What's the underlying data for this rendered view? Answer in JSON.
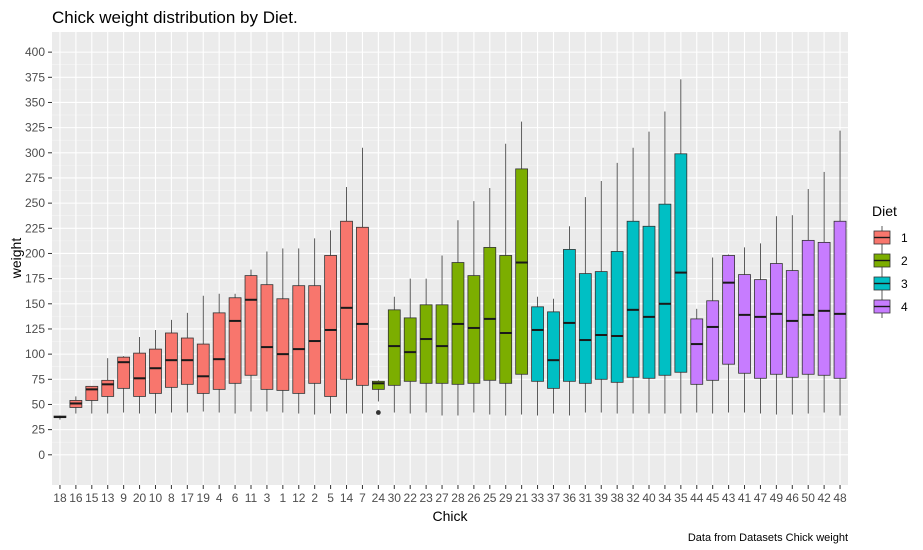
{
  "chart_data": {
    "type": "boxplot",
    "title": "Chick weight distribution by Diet.",
    "xlabel": "Chick",
    "ylabel": "weight",
    "caption": "Data from Datasets Chick weight",
    "ylim": [
      -30,
      420
    ],
    "yticks": [
      0,
      25,
      50,
      75,
      100,
      125,
      150,
      175,
      200,
      225,
      250,
      275,
      300,
      325,
      350,
      375,
      400
    ],
    "grid": true,
    "legend": {
      "title": "Diet",
      "position": "right"
    },
    "series": [
      {
        "name": "1",
        "color": "#F8766D"
      },
      {
        "name": "2",
        "color": "#7CAE00"
      },
      {
        "name": "3",
        "color": "#00BFC4"
      },
      {
        "name": "4",
        "color": "#C77CFF"
      }
    ],
    "boxes": [
      {
        "chick": "18",
        "diet": "1",
        "min": 35,
        "q1": 37,
        "median": 37.5,
        "q3": 38.5,
        "max": 39,
        "outliers": []
      },
      {
        "chick": "16",
        "diet": "1",
        "min": 41,
        "q1": 47,
        "median": 51,
        "q3": 54,
        "max": 58,
        "outliers": []
      },
      {
        "chick": "15",
        "diet": "1",
        "min": 41,
        "q1": 54,
        "median": 65,
        "q3": 68,
        "max": 68,
        "outliers": []
      },
      {
        "chick": "13",
        "diet": "1",
        "min": 41,
        "q1": 58,
        "median": 70,
        "q3": 74,
        "max": 96,
        "outliers": []
      },
      {
        "chick": "9",
        "diet": "1",
        "min": 42,
        "q1": 66,
        "median": 92,
        "q3": 97,
        "max": 98,
        "outliers": []
      },
      {
        "chick": "20",
        "diet": "1",
        "min": 41,
        "q1": 58,
        "median": 76,
        "q3": 101,
        "max": 117,
        "outliers": []
      },
      {
        "chick": "10",
        "diet": "1",
        "min": 41,
        "q1": 61,
        "median": 86,
        "q3": 105,
        "max": 124,
        "outliers": []
      },
      {
        "chick": "8",
        "diet": "1",
        "min": 42,
        "q1": 67,
        "median": 94,
        "q3": 121,
        "max": 134,
        "outliers": []
      },
      {
        "chick": "17",
        "diet": "1",
        "min": 42,
        "q1": 70,
        "median": 94,
        "q3": 116,
        "max": 141,
        "outliers": []
      },
      {
        "chick": "19",
        "diet": "1",
        "min": 43,
        "q1": 61,
        "median": 78,
        "q3": 110,
        "max": 158,
        "outliers": []
      },
      {
        "chick": "4",
        "diet": "1",
        "min": 42,
        "q1": 65,
        "median": 95,
        "q3": 141,
        "max": 160,
        "outliers": []
      },
      {
        "chick": "6",
        "diet": "1",
        "min": 41,
        "q1": 71,
        "median": 133,
        "q3": 156,
        "max": 160,
        "outliers": []
      },
      {
        "chick": "11",
        "diet": "1",
        "min": 43,
        "q1": 79,
        "median": 154,
        "q3": 178,
        "max": 184,
        "outliers": []
      },
      {
        "chick": "3",
        "diet": "1",
        "min": 43,
        "q1": 65,
        "median": 107,
        "q3": 169,
        "max": 202,
        "outliers": []
      },
      {
        "chick": "1",
        "diet": "1",
        "min": 42,
        "q1": 64,
        "median": 100,
        "q3": 155,
        "max": 205,
        "outliers": []
      },
      {
        "chick": "12",
        "diet": "1",
        "min": 41,
        "q1": 61,
        "median": 105,
        "q3": 168,
        "max": 205,
        "outliers": []
      },
      {
        "chick": "2",
        "diet": "1",
        "min": 40,
        "q1": 71,
        "median": 113,
        "q3": 168,
        "max": 215,
        "outliers": []
      },
      {
        "chick": "5",
        "diet": "1",
        "min": 41,
        "q1": 58,
        "median": 124,
        "q3": 198,
        "max": 223,
        "outliers": []
      },
      {
        "chick": "14",
        "diet": "1",
        "min": 41,
        "q1": 75,
        "median": 146,
        "q3": 232,
        "max": 266,
        "outliers": []
      },
      {
        "chick": "7",
        "diet": "1",
        "min": 41,
        "q1": 69,
        "median": 130,
        "q3": 226,
        "max": 305,
        "outliers": []
      },
      {
        "chick": "24",
        "diet": "2",
        "min": 53,
        "q1": 65,
        "median": 71,
        "q3": 73,
        "max": 74,
        "outliers": [
          42
        ]
      },
      {
        "chick": "30",
        "diet": "2",
        "min": 42,
        "q1": 69,
        "median": 108,
        "q3": 144,
        "max": 157,
        "outliers": []
      },
      {
        "chick": "22",
        "diet": "2",
        "min": 41,
        "q1": 73,
        "median": 102,
        "q3": 136,
        "max": 175,
        "outliers": []
      },
      {
        "chick": "23",
        "diet": "2",
        "min": 42,
        "q1": 71,
        "median": 115,
        "q3": 149,
        "max": 175,
        "outliers": []
      },
      {
        "chick": "27",
        "diet": "2",
        "min": 39,
        "q1": 71,
        "median": 108,
        "q3": 149,
        "max": 198,
        "outliers": []
      },
      {
        "chick": "28",
        "diet": "2",
        "min": 39,
        "q1": 70,
        "median": 130,
        "q3": 191,
        "max": 233,
        "outliers": []
      },
      {
        "chick": "26",
        "diet": "2",
        "min": 42,
        "q1": 71,
        "median": 126,
        "q3": 178,
        "max": 252,
        "outliers": []
      },
      {
        "chick": "25",
        "diet": "2",
        "min": 40,
        "q1": 74,
        "median": 135,
        "q3": 206,
        "max": 265,
        "outliers": []
      },
      {
        "chick": "29",
        "diet": "2",
        "min": 39,
        "q1": 71,
        "median": 121,
        "q3": 198,
        "max": 309,
        "outliers": []
      },
      {
        "chick": "21",
        "diet": "2",
        "min": 40,
        "q1": 80,
        "median": 191,
        "q3": 284,
        "max": 331,
        "outliers": []
      },
      {
        "chick": "33",
        "diet": "3",
        "min": 39,
        "q1": 73,
        "median": 124,
        "q3": 147,
        "max": 157,
        "outliers": []
      },
      {
        "chick": "37",
        "diet": "3",
        "min": 41,
        "q1": 66,
        "median": 94,
        "q3": 142,
        "max": 155,
        "outliers": []
      },
      {
        "chick": "36",
        "diet": "3",
        "min": 39,
        "q1": 73,
        "median": 131,
        "q3": 204,
        "max": 227,
        "outliers": []
      },
      {
        "chick": "31",
        "diet": "3",
        "min": 42,
        "q1": 71,
        "median": 114,
        "q3": 180,
        "max": 256,
        "outliers": []
      },
      {
        "chick": "39",
        "diet": "3",
        "min": 42,
        "q1": 75,
        "median": 119,
        "q3": 182,
        "max": 272,
        "outliers": []
      },
      {
        "chick": "38",
        "diet": "3",
        "min": 41,
        "q1": 72,
        "median": 118,
        "q3": 202,
        "max": 290,
        "outliers": []
      },
      {
        "chick": "32",
        "diet": "3",
        "min": 41,
        "q1": 77,
        "median": 144,
        "q3": 232,
        "max": 305,
        "outliers": []
      },
      {
        "chick": "40",
        "diet": "3",
        "min": 41,
        "q1": 76,
        "median": 137,
        "q3": 227,
        "max": 321,
        "outliers": []
      },
      {
        "chick": "34",
        "diet": "3",
        "min": 41,
        "q1": 79,
        "median": 150,
        "q3": 249,
        "max": 341,
        "outliers": []
      },
      {
        "chick": "35",
        "diet": "3",
        "min": 41,
        "q1": 82,
        "median": 181,
        "q3": 299,
        "max": 373,
        "outliers": []
      },
      {
        "chick": "44",
        "diet": "4",
        "min": 42,
        "q1": 70,
        "median": 110,
        "q3": 135,
        "max": 145,
        "outliers": []
      },
      {
        "chick": "45",
        "diet": "4",
        "min": 41,
        "q1": 74,
        "median": 127,
        "q3": 153,
        "max": 196,
        "outliers": []
      },
      {
        "chick": "43",
        "diet": "4",
        "min": 42,
        "q1": 90,
        "median": 171,
        "q3": 198,
        "max": 199,
        "outliers": []
      },
      {
        "chick": "41",
        "diet": "4",
        "min": 42,
        "q1": 81,
        "median": 139,
        "q3": 179,
        "max": 206,
        "outliers": []
      },
      {
        "chick": "47",
        "diet": "4",
        "min": 41,
        "q1": 76,
        "median": 137,
        "q3": 174,
        "max": 210,
        "outliers": []
      },
      {
        "chick": "49",
        "diet": "4",
        "min": 40,
        "q1": 80,
        "median": 140,
        "q3": 190,
        "max": 237,
        "outliers": []
      },
      {
        "chick": "46",
        "diet": "4",
        "min": 40,
        "q1": 77,
        "median": 133,
        "q3": 183,
        "max": 238,
        "outliers": []
      },
      {
        "chick": "50",
        "diet": "4",
        "min": 41,
        "q1": 80,
        "median": 139,
        "q3": 213,
        "max": 264,
        "outliers": []
      },
      {
        "chick": "42",
        "diet": "4",
        "min": 42,
        "q1": 79,
        "median": 143,
        "q3": 211,
        "max": 281,
        "outliers": []
      },
      {
        "chick": "48",
        "diet": "4",
        "min": 39,
        "q1": 76,
        "median": 140,
        "q3": 232,
        "max": 322,
        "outliers": []
      }
    ]
  }
}
